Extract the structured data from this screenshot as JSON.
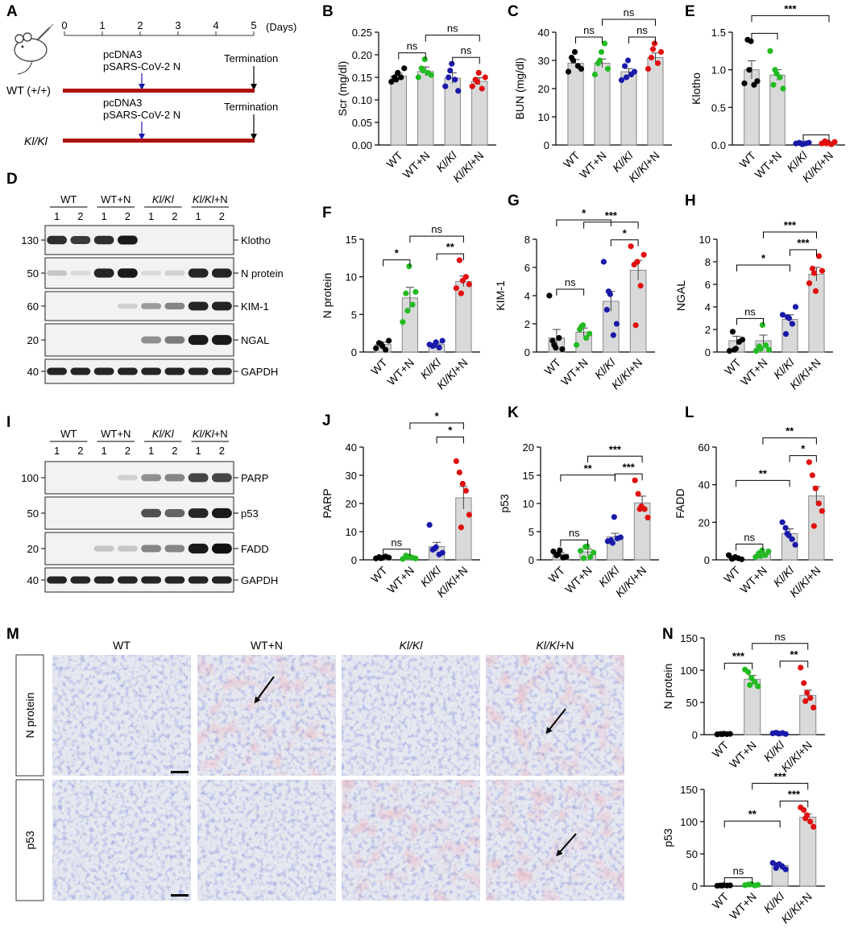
{
  "panel_letters": {
    "A": "A",
    "B": "B",
    "C": "C",
    "D": "D",
    "E": "E",
    "F": "F",
    "G": "G",
    "H": "H",
    "I": "I",
    "J": "J",
    "K": "K",
    "L": "L",
    "M": "M",
    "N": "N"
  },
  "colors": {
    "WT": "#000000",
    "WT+N": "#22bb22",
    "Kl/Kl": "#1a1aaa",
    "Kl/Kl+N": "#e01010",
    "bar": "#d9d9d9",
    "timeline": "#b01010",
    "arrow": "#1a1aaa"
  },
  "timeline": {
    "days_label": "(Days)",
    "ticks": [
      "0",
      "1",
      "2",
      "3",
      "4",
      "5"
    ],
    "rows": [
      {
        "genotype": "WT (+/+)",
        "italic": false,
        "plasmid1": "pcDNA3",
        "plasmid2": "pSARS-CoV-2 N",
        "termination": "Termination"
      },
      {
        "genotype": "Kl/Kl",
        "italic": true,
        "plasmid1": "pcDNA3",
        "plasmid2": "pSARS-CoV-2 N",
        "termination": "Termination"
      }
    ]
  },
  "groups": [
    {
      "base": "WT",
      "suffix": ""
    },
    {
      "base": "WT",
      "suffix": "+N"
    },
    {
      "base": "Kl/Kl",
      "suffix": "",
      "italic": true
    },
    {
      "base": "Kl/Kl",
      "suffix": "+N",
      "italic": true
    }
  ],
  "blot_D": {
    "lane_numbers": [
      "1",
      "2",
      "1",
      "2",
      "1",
      "2",
      "1",
      "2"
    ],
    "bands": [
      {
        "mw": "130",
        "label": "Klotho",
        "intensity": [
          0.85,
          0.8,
          0.85,
          0.95,
          0,
          0,
          0,
          0
        ]
      },
      {
        "mw": "50",
        "label": "N protein",
        "intensity": [
          0.15,
          0.05,
          0.9,
          0.95,
          0.05,
          0.1,
          0.9,
          0.9
        ]
      },
      {
        "mw": "60",
        "label": "KIM-1",
        "intensity": [
          0,
          0,
          0,
          0.1,
          0.35,
          0.45,
          0.9,
          0.9
        ]
      },
      {
        "mw": "20",
        "label": "NGAL",
        "intensity": [
          0,
          0,
          0,
          0,
          0.4,
          0.5,
          0.95,
          0.95
        ]
      },
      {
        "mw": "40",
        "label": "GAPDH",
        "intensity": [
          0.9,
          0.9,
          0.9,
          0.9,
          0.9,
          0.9,
          0.9,
          0.9
        ]
      }
    ]
  },
  "blot_I": {
    "lane_numbers": [
      "1",
      "2",
      "1",
      "2",
      "1",
      "2",
      "1",
      "2"
    ],
    "bands": [
      {
        "mw": "100",
        "label": "PARP",
        "intensity": [
          0,
          0,
          0,
          0.1,
          0.4,
          0.45,
          0.75,
          0.75
        ]
      },
      {
        "mw": "50",
        "label": "p53",
        "intensity": [
          0,
          0,
          0,
          0,
          0.7,
          0.6,
          0.9,
          0.95
        ]
      },
      {
        "mw": "20",
        "label": "FADD",
        "intensity": [
          0,
          0,
          0.15,
          0.15,
          0.45,
          0.45,
          0.95,
          1
        ]
      },
      {
        "mw": "40",
        "label": "GAPDH",
        "intensity": [
          0.9,
          0.9,
          0.9,
          0.9,
          0.9,
          0.9,
          0.9,
          0.9
        ]
      }
    ]
  },
  "histology": {
    "columns": [
      "WT",
      "WT+N",
      "Kl/Kl",
      "Kl/Kl+N"
    ],
    "rows": [
      "N protein",
      "p53"
    ]
  },
  "chart_data": [
    {
      "id": "B",
      "type": "bar",
      "ylabel": "Scr (mg/dl)",
      "ylim": [
        0,
        0.25
      ],
      "yticks": [
        "0.00",
        "0.05",
        "0.10",
        "0.15",
        "0.20",
        "0.25"
      ],
      "tickvals": [
        0,
        0.05,
        0.1,
        0.15,
        0.2,
        0.25
      ],
      "categories": [
        "WT",
        "WT+N",
        "Kl/Kl",
        "Kl/Kl+N"
      ],
      "values": [
        0.153,
        0.163,
        0.148,
        0.141
      ],
      "sem": [
        0.006,
        0.01,
        0.012,
        0.008
      ],
      "points": [
        [
          0.14,
          0.15,
          0.16,
          0.15,
          0.17,
          0.145
        ],
        [
          0.15,
          0.17,
          0.19,
          0.16,
          0.155,
          0.165
        ],
        [
          0.13,
          0.15,
          0.18,
          0.145,
          0.12,
          0.165
        ],
        [
          0.13,
          0.145,
          0.16,
          0.125,
          0.15,
          0.14
        ]
      ],
      "sig": [
        {
          "a": 0,
          "b": 1,
          "level": 0,
          "label": "ns"
        },
        {
          "a": 2,
          "b": 3,
          "level": 0,
          "label": "ns"
        },
        {
          "a": 1,
          "b": 3,
          "level": 1,
          "label": "ns"
        }
      ]
    },
    {
      "id": "C",
      "type": "bar",
      "ylabel": "BUN (mg/dl)",
      "ylim": [
        0,
        40
      ],
      "yticks": [
        "0",
        "10",
        "20",
        "30",
        "40"
      ],
      "tickvals": [
        0,
        10,
        20,
        30,
        40
      ],
      "categories": [
        "WT",
        "WT+N",
        "Kl/Kl",
        "Kl/Kl+N"
      ],
      "values": [
        29,
        29,
        26,
        31
      ],
      "sem": [
        1.3,
        1.5,
        1.1,
        1.6
      ],
      "points": [
        [
          26,
          31,
          33,
          28,
          27,
          30
        ],
        [
          25,
          29,
          33,
          36,
          27,
          30
        ],
        [
          23,
          28,
          30,
          25,
          26,
          24
        ],
        [
          27,
          31,
          36,
          29,
          33,
          34
        ]
      ],
      "sig": [
        {
          "a": 0,
          "b": 1,
          "level": 0,
          "label": "ns"
        },
        {
          "a": 2,
          "b": 3,
          "level": 0,
          "label": "ns"
        },
        {
          "a": 1,
          "b": 3,
          "level": 1,
          "label": "ns"
        }
      ]
    },
    {
      "id": "E",
      "type": "bar",
      "ylabel": "Klotho",
      "ylim": [
        0,
        1.5
      ],
      "yticks": [
        "0.0",
        "0.5",
        "1.0",
        "1.5"
      ],
      "tickvals": [
        0,
        0.5,
        1,
        1.5
      ],
      "categories": [
        "WT",
        "WT+N",
        "Kl/Kl",
        "Kl/Kl+N"
      ],
      "values": [
        1.0,
        0.93,
        0.02,
        0.03
      ],
      "sem": [
        0.12,
        0.07,
        0.01,
        0.01
      ],
      "points": [
        [
          0.82,
          1.4,
          1.38,
          0.8,
          0.85,
          1.0
        ],
        [
          1.25,
          0.8,
          0.95,
          0.9,
          0.75,
          1.0
        ],
        [
          0.02,
          0.03,
          0.01,
          0.02,
          0.03,
          0.02
        ],
        [
          0.02,
          0.05,
          0.03,
          0.01,
          0.04,
          0.02
        ]
      ],
      "sig": [
        {
          "a": 0,
          "b": 1,
          "level": 0,
          "label": ""
        },
        {
          "a": 2,
          "b": 3,
          "level": 0,
          "label": ""
        },
        {
          "a": 0,
          "b": 3,
          "level": 1,
          "label": "***",
          "group": true
        }
      ]
    },
    {
      "id": "F",
      "type": "bar",
      "ylabel": "N protein",
      "ylim": [
        0,
        15
      ],
      "yticks": [
        "0",
        "5",
        "10",
        "15"
      ],
      "tickvals": [
        0,
        5,
        10,
        15
      ],
      "categories": [
        "WT",
        "WT+N",
        "Kl/Kl",
        "Kl/Kl+N"
      ],
      "values": [
        1.0,
        7.2,
        1.0,
        9.4
      ],
      "sem": [
        0.3,
        1.4,
        0.2,
        0.7
      ],
      "points": [
        [
          0.5,
          1.2,
          0.8,
          0.3,
          1.5,
          1.1
        ],
        [
          4.0,
          7.8,
          11.4,
          6.3,
          8.0,
          5.5
        ],
        [
          1.0,
          0.8,
          1.3,
          0.6,
          1.5,
          0.9
        ],
        [
          8.5,
          12.2,
          9.5,
          10.0,
          9.0,
          7.8
        ]
      ],
      "sig": [
        {
          "a": 0,
          "b": 1,
          "level": 0,
          "label": "*"
        },
        {
          "a": 2,
          "b": 3,
          "level": 0,
          "label": "**"
        },
        {
          "a": 1,
          "b": 3,
          "level": 1,
          "label": "ns"
        }
      ]
    },
    {
      "id": "G",
      "type": "bar",
      "ylabel": "KIM-1",
      "ylim": [
        0,
        8
      ],
      "yticks": [
        "0",
        "2",
        "4",
        "6",
        "8"
      ],
      "tickvals": [
        0,
        2,
        4,
        6,
        8
      ],
      "categories": [
        "WT",
        "WT+N",
        "Kl/Kl",
        "Kl/Kl+N"
      ],
      "values": [
        1.0,
        1.4,
        3.6,
        5.8
      ],
      "sem": [
        0.6,
        0.3,
        0.7,
        0.7
      ],
      "points": [
        [
          4.0,
          0.8,
          0.3,
          1.0,
          0.2,
          0.5
        ],
        [
          0.5,
          1.6,
          1.9,
          1.0,
          1.3,
          1.8
        ],
        [
          6.4,
          3.0,
          4.1,
          1.2,
          2.0,
          4.3
        ],
        [
          7.5,
          6.2,
          6.4,
          4.7,
          6.9,
          1.9
        ]
      ],
      "sig": [
        {
          "a": 0,
          "b": 1,
          "level": 0,
          "label": "ns"
        },
        {
          "a": 2,
          "b": 3,
          "level": 0,
          "label": "*"
        },
        {
          "a": 1,
          "b": 3,
          "level": 1,
          "label": "***"
        },
        {
          "a": 0,
          "b": 2,
          "level": 2,
          "label": "*"
        }
      ]
    },
    {
      "id": "H",
      "type": "bar",
      "ylabel": "NGAL",
      "ylim": [
        0,
        10
      ],
      "yticks": [
        "0",
        "2",
        "4",
        "6",
        "8",
        "10"
      ],
      "tickvals": [
        0,
        2,
        4,
        6,
        8,
        10
      ],
      "categories": [
        "WT",
        "WT+N",
        "Kl/Kl",
        "Kl/Kl+N"
      ],
      "values": [
        1.0,
        1.0,
        2.9,
        6.9
      ],
      "sem": [
        0.4,
        0.5,
        0.4,
        0.6
      ],
      "points": [
        [
          0.1,
          1.8,
          0.3,
          0.9,
          1.1,
          0.2
        ],
        [
          0.1,
          0.5,
          2.4,
          0.6,
          0.2,
          0.3
        ],
        [
          3.3,
          1.6,
          3.0,
          2.5,
          4.0,
          3.1
        ],
        [
          6.1,
          7.4,
          5.4,
          8.5,
          7.2,
          7.0
        ]
      ],
      "sig": [
        {
          "a": 0,
          "b": 1,
          "level": 0,
          "label": "ns"
        },
        {
          "a": 2,
          "b": 3,
          "level": 0,
          "label": "***"
        },
        {
          "a": 1,
          "b": 3,
          "level": 1,
          "label": "***"
        },
        {
          "a": 0,
          "b": 2,
          "level": 2,
          "label": "*"
        }
      ]
    },
    {
      "id": "J",
      "type": "bar",
      "ylabel": "PARP",
      "ylim": [
        0,
        40
      ],
      "yticks": [
        "0",
        "10",
        "20",
        "30",
        "40"
      ],
      "tickvals": [
        0,
        10,
        20,
        30,
        40
      ],
      "categories": [
        "WT",
        "WT+N",
        "Kl/Kl",
        "Kl/Kl+N"
      ],
      "values": [
        1.0,
        1.0,
        4.7,
        22.0
      ],
      "sem": [
        0.2,
        0.3,
        1.5,
        4.0
      ],
      "points": [
        [
          0.5,
          1.0,
          0.7,
          1.2,
          0.8,
          0.6
        ],
        [
          0.3,
          1.5,
          1.2,
          0.8,
          0.5,
          1.0
        ],
        [
          12.4,
          3.6,
          4.5,
          1.9,
          2.5,
          4.0
        ],
        [
          35.0,
          31.0,
          27.0,
          24.5,
          16.0,
          11.5
        ]
      ],
      "sig": [
        {
          "a": 0,
          "b": 1,
          "level": 0,
          "label": "ns"
        },
        {
          "a": 2,
          "b": 3,
          "level": 1,
          "label": "*"
        },
        {
          "a": 1,
          "b": 3,
          "level": 2,
          "label": "*"
        }
      ]
    },
    {
      "id": "K",
      "type": "bar",
      "ylabel": "p53",
      "ylim": [
        0,
        20
      ],
      "yticks": [
        "0",
        "5",
        "10",
        "15",
        "20"
      ],
      "tickvals": [
        0,
        5,
        10,
        15,
        20
      ],
      "categories": [
        "WT",
        "WT+N",
        "Kl/Kl",
        "Kl/Kl+N"
      ],
      "values": [
        1.0,
        1.4,
        4.1,
        10.1
      ],
      "sem": [
        0.3,
        0.5,
        0.6,
        1.2
      ],
      "points": [
        [
          1.5,
          0.8,
          1.7,
          0.4,
          0.5,
          1.0
        ],
        [
          1.6,
          0.3,
          2.4,
          0.5,
          1.3,
          2.3
        ],
        [
          3.3,
          3.5,
          7.6,
          3.8,
          4.0,
          3.0
        ],
        [
          14.1,
          11.7,
          9.5,
          9.0,
          7.5,
          9.0
        ]
      ],
      "sig": [
        {
          "a": 0,
          "b": 1,
          "level": 0,
          "label": "ns"
        },
        {
          "a": 2,
          "b": 3,
          "level": 0,
          "label": "***"
        },
        {
          "a": 1,
          "b": 3,
          "level": 1,
          "label": "***"
        },
        {
          "a": 0,
          "b": 2,
          "level": 2,
          "label": "**"
        }
      ]
    },
    {
      "id": "L",
      "type": "bar",
      "ylabel": "FADD",
      "ylim": [
        0,
        60
      ],
      "yticks": [
        "0",
        "20",
        "40",
        "60"
      ],
      "tickvals": [
        0,
        20,
        40,
        60
      ],
      "categories": [
        "WT",
        "WT+N",
        "Kl/Kl",
        "Kl/Kl+N"
      ],
      "values": [
        1.0,
        3.0,
        14.0,
        34.0
      ],
      "sem": [
        0.5,
        0.8,
        2.5,
        5.0
      ],
      "points": [
        [
          2.5,
          0.5,
          1.5,
          0.8,
          0.3,
          1.0
        ],
        [
          1.5,
          3.5,
          5.0,
          2.5,
          4.5,
          2.0
        ],
        [
          20.0,
          17.0,
          13.0,
          11.0,
          8.0,
          14.0
        ],
        [
          52.0,
          45.0,
          38.0,
          30.0,
          26.0,
          18.0
        ]
      ],
      "sig": [
        {
          "a": 0,
          "b": 1,
          "level": 0,
          "label": "ns"
        },
        {
          "a": 2,
          "b": 3,
          "level": 0,
          "label": "*"
        },
        {
          "a": 1,
          "b": 3,
          "level": 1,
          "label": "**"
        },
        {
          "a": 0,
          "b": 2,
          "level": 2,
          "label": "**"
        }
      ]
    },
    {
      "id": "N1",
      "type": "bar",
      "ylabel": "N protein",
      "ylim": [
        0,
        150
      ],
      "yticks": [
        "0",
        "50",
        "100",
        "150"
      ],
      "tickvals": [
        0,
        50,
        100,
        150
      ],
      "categories": [
        "WT",
        "WT+N",
        "Kl/Kl",
        "Kl/Kl+N"
      ],
      "values": [
        1.0,
        86.0,
        2.0,
        61.0
      ],
      "sem": [
        0.5,
        6.0,
        0.8,
        8.0
      ],
      "points": [
        [
          0.5,
          1.0,
          1.5,
          0.8,
          1.2,
          0.7
        ],
        [
          101,
          97,
          88,
          82,
          75,
          77
        ],
        [
          2.0,
          3.0,
          1.5,
          2.5,
          1.0,
          2.2
        ],
        [
          104,
          80,
          65,
          57,
          42,
          52
        ]
      ],
      "sig": [
        {
          "a": 0,
          "b": 1,
          "level": 0,
          "label": "***"
        },
        {
          "a": 2,
          "b": 3,
          "level": 0,
          "label": "**"
        },
        {
          "a": 1,
          "b": 3,
          "level": 1,
          "label": "ns"
        }
      ]
    },
    {
      "id": "N2",
      "type": "bar",
      "ylabel": "p53",
      "ylim": [
        0,
        150
      ],
      "yticks": [
        "0",
        "50",
        "100",
        "150"
      ],
      "tickvals": [
        0,
        50,
        100,
        150
      ],
      "categories": [
        "WT",
        "WT+N",
        "Kl/Kl",
        "Kl/Kl+N"
      ],
      "values": [
        1.0,
        2.0,
        32.0,
        107.0
      ],
      "sem": [
        0.5,
        0.8,
        2.5,
        5.0
      ],
      "points": [
        [
          0.5,
          1.0,
          1.5,
          0.8,
          1.2,
          0.7
        ],
        [
          1.5,
          2.5,
          3.0,
          1.0,
          2.0,
          2.5
        ],
        [
          36,
          28,
          34,
          30,
          26,
          33
        ],
        [
          122,
          118,
          110,
          100,
          92,
          105
        ]
      ],
      "sig": [
        {
          "a": 0,
          "b": 1,
          "level": 0,
          "label": "ns"
        },
        {
          "a": 2,
          "b": 3,
          "level": 0,
          "label": "***"
        },
        {
          "a": 1,
          "b": 3,
          "level": 1,
          "label": "***"
        },
        {
          "a": 0,
          "b": 2,
          "level": 2,
          "label": "**"
        }
      ]
    }
  ]
}
